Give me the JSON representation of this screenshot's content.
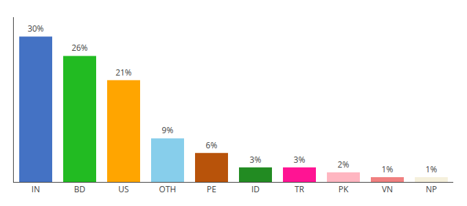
{
  "chart_data": {
    "type": "bar",
    "categories": [
      "IN",
      "BD",
      "US",
      "OTH",
      "PE",
      "ID",
      "TR",
      "PK",
      "VN",
      "NP"
    ],
    "values": [
      30,
      26,
      21,
      9,
      6,
      3,
      3,
      2,
      1,
      1
    ],
    "value_labels": [
      "30%",
      "26%",
      "21%",
      "9%",
      "6%",
      "3%",
      "3%",
      "2%",
      "1%",
      "1%"
    ],
    "colors": [
      "#4472c4",
      "#22bb22",
      "#ffa500",
      "#87ceeb",
      "#b8530a",
      "#228b22",
      "#ff1493",
      "#ffb6c1",
      "#f08080",
      "#f5f0dc"
    ],
    "ylim": [
      0,
      34
    ],
    "data_labels": true,
    "tick_labels": "x",
    "grid": false
  }
}
